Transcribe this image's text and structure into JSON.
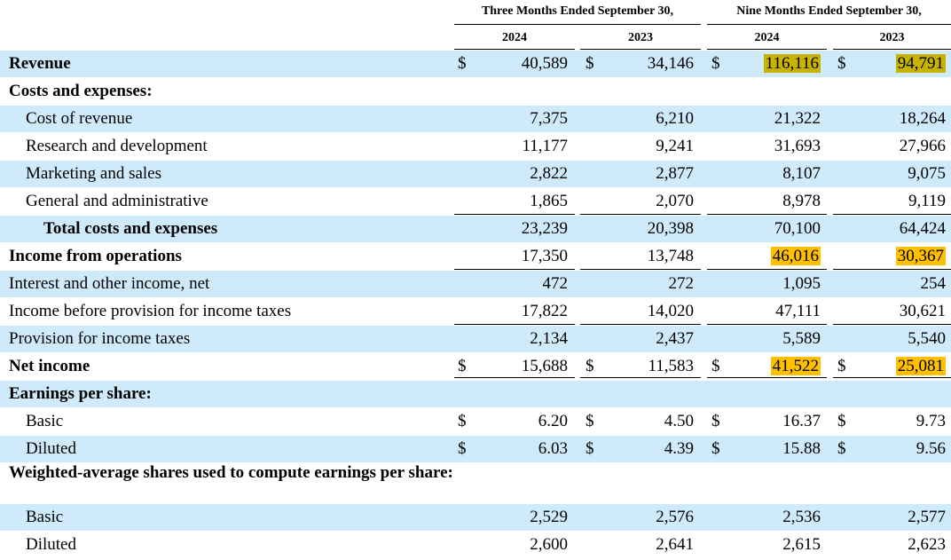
{
  "header": {
    "three_months": "Three Months Ended September 30,",
    "nine_months": "Nine Months Ended September 30,",
    "years": [
      "2024",
      "2023",
      "2024",
      "2023"
    ]
  },
  "rows": [
    {
      "label": "Revenue",
      "bold": true,
      "dollar": true,
      "values": [
        "40,589",
        "34,146",
        "116,116",
        "94,791"
      ],
      "highlight": [
        "",
        "",
        "olive",
        "olive"
      ]
    },
    {
      "label": "Costs and expenses:",
      "bold": true,
      "values": []
    },
    {
      "label": "Cost of revenue",
      "values": [
        "7,375",
        "6,210",
        "21,322",
        "18,264"
      ]
    },
    {
      "label": "Research and development",
      "values": [
        "11,177",
        "9,241",
        "31,693",
        "27,966"
      ]
    },
    {
      "label": "Marketing and sales",
      "values": [
        "2,822",
        "2,877",
        "8,107",
        "9,075"
      ]
    },
    {
      "label": "General and administrative",
      "values": [
        "1,865",
        "2,070",
        "8,978",
        "9,119"
      ]
    },
    {
      "label": "Total costs and expenses",
      "bold": true,
      "values": [
        "23,239",
        "20,398",
        "70,100",
        "64,424"
      ]
    },
    {
      "label": "Income from operations",
      "bold": true,
      "values": [
        "17,350",
        "13,748",
        "46,016",
        "30,367"
      ],
      "highlight": [
        "",
        "",
        "orange",
        "orange"
      ]
    },
    {
      "label": "Interest and other income, net",
      "values": [
        "472",
        "272",
        "1,095",
        "254"
      ]
    },
    {
      "label": "Income before provision for income taxes",
      "values": [
        "17,822",
        "14,020",
        "47,111",
        "30,621"
      ]
    },
    {
      "label": "Provision for income taxes",
      "values": [
        "2,134",
        "2,437",
        "5,589",
        "5,540"
      ]
    },
    {
      "label": "Net income",
      "bold": true,
      "dollar": true,
      "values": [
        "15,688",
        "11,583",
        "41,522",
        "25,081"
      ],
      "highlight": [
        "",
        "",
        "orange",
        "orange"
      ]
    },
    {
      "label": "Earnings per share:",
      "bold": true,
      "values": []
    },
    {
      "label": "Basic",
      "dollar": true,
      "values": [
        "6.20",
        "4.50",
        "16.37",
        "9.73"
      ]
    },
    {
      "label": "Diluted",
      "dollar": true,
      "values": [
        "6.03",
        "4.39",
        "15.88",
        "9.56"
      ]
    },
    {
      "label": "Weighted-average shares used to compute earnings per share:",
      "bold": true,
      "values": []
    },
    {
      "label": "Basic",
      "values": [
        "2,529",
        "2,576",
        "2,536",
        "2,577"
      ]
    },
    {
      "label": "Diluted",
      "values": [
        "2,600",
        "2,641",
        "2,615",
        "2,623"
      ]
    }
  ],
  "currency_symbol": "$",
  "colors": {
    "band": "#cfeafa",
    "highlight_olive": "#c8b400",
    "highlight_orange": "#ffc000"
  }
}
